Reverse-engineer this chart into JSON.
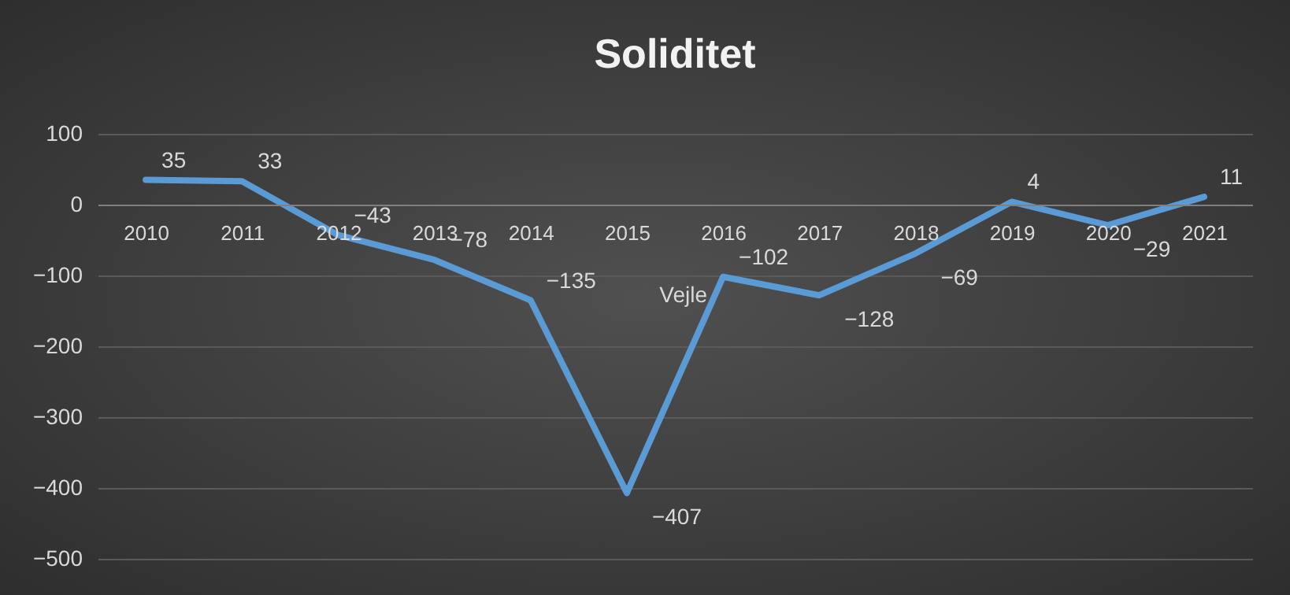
{
  "chart_data": {
    "type": "line",
    "title": "Soliditet",
    "categories": [
      "2010",
      "2011",
      "2012",
      "2013",
      "2014",
      "2015",
      "2016",
      "2017",
      "2018",
      "2019",
      "2020",
      "2021"
    ],
    "series": [
      {
        "name": "Vejle",
        "color": "#5b9bd5",
        "values": [
          35,
          33,
          -43,
          -78,
          -135,
          -407,
          -102,
          -128,
          -69,
          4,
          -29,
          11
        ]
      }
    ],
    "ylim": [
      -500,
      100
    ],
    "yticks": [
      -500,
      -400,
      -300,
      -200,
      -100,
      0,
      100
    ],
    "grid": "y",
    "marker": "none",
    "line_style": "solid",
    "data_labels": true
  }
}
